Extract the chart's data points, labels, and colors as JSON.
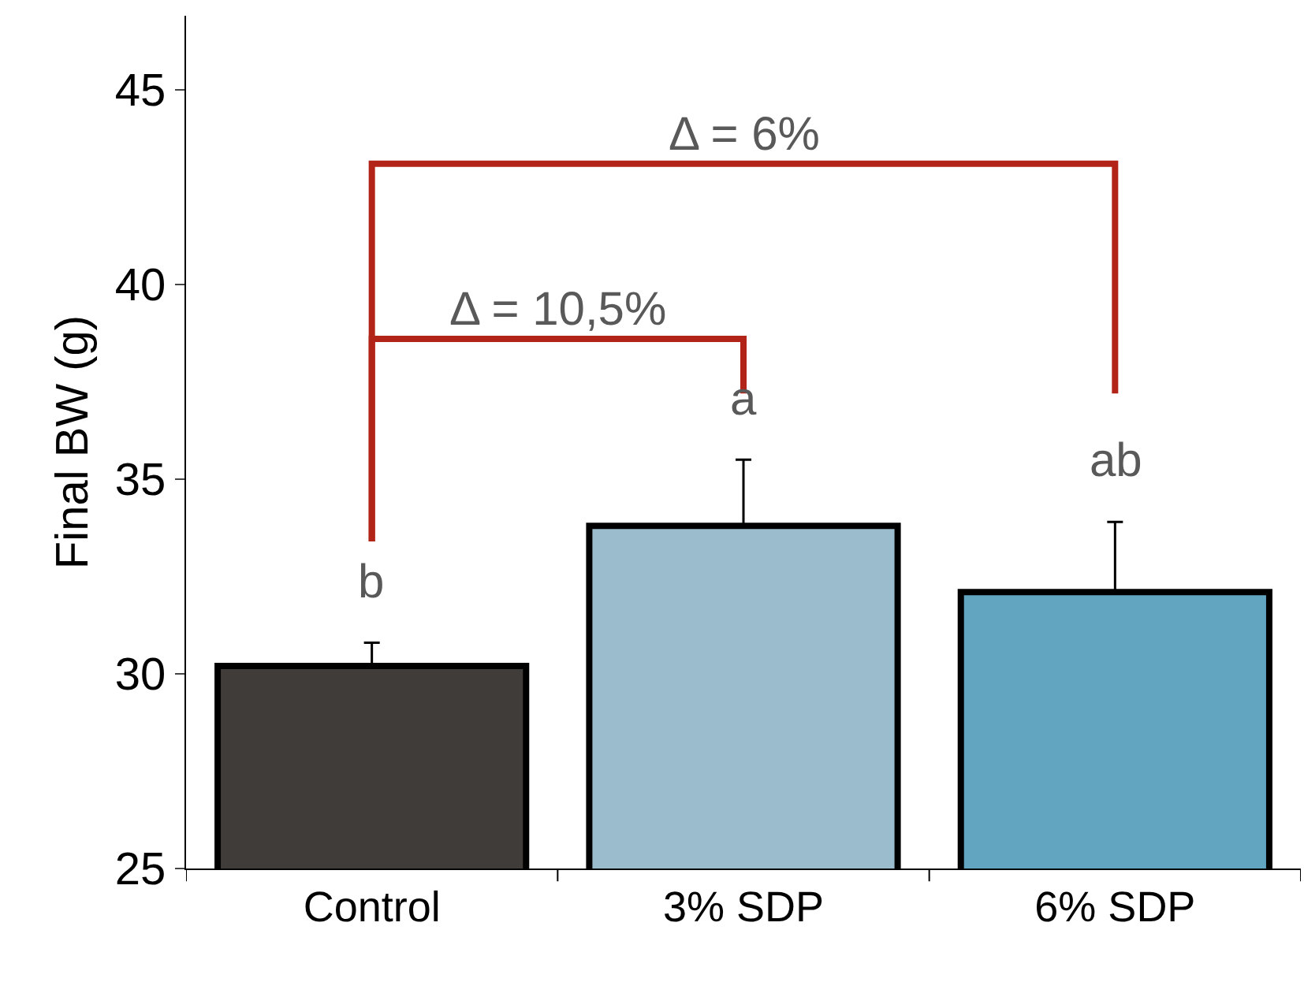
{
  "chart_data": {
    "type": "bar",
    "ylabel": "Final BW (g)",
    "categories": [
      "Control",
      "3% SDP",
      "6% SDP"
    ],
    "values": [
      30.2,
      33.8,
      32.1
    ],
    "colors": [
      "#3f3c39",
      "#9bbccd",
      "#62a5c0"
    ],
    "errors": [
      [
        30.2,
        30.8
      ],
      [
        33.8,
        35.5
      ],
      [
        32.1,
        33.9
      ]
    ],
    "ylim": [
      25,
      46.9
    ],
    "yticks": [
      25,
      30,
      35,
      40,
      45
    ],
    "grid": false,
    "annotations": [
      "b",
      "a",
      "ab",
      "Δ = 10,5%",
      "Δ = 6%"
    ]
  }
}
